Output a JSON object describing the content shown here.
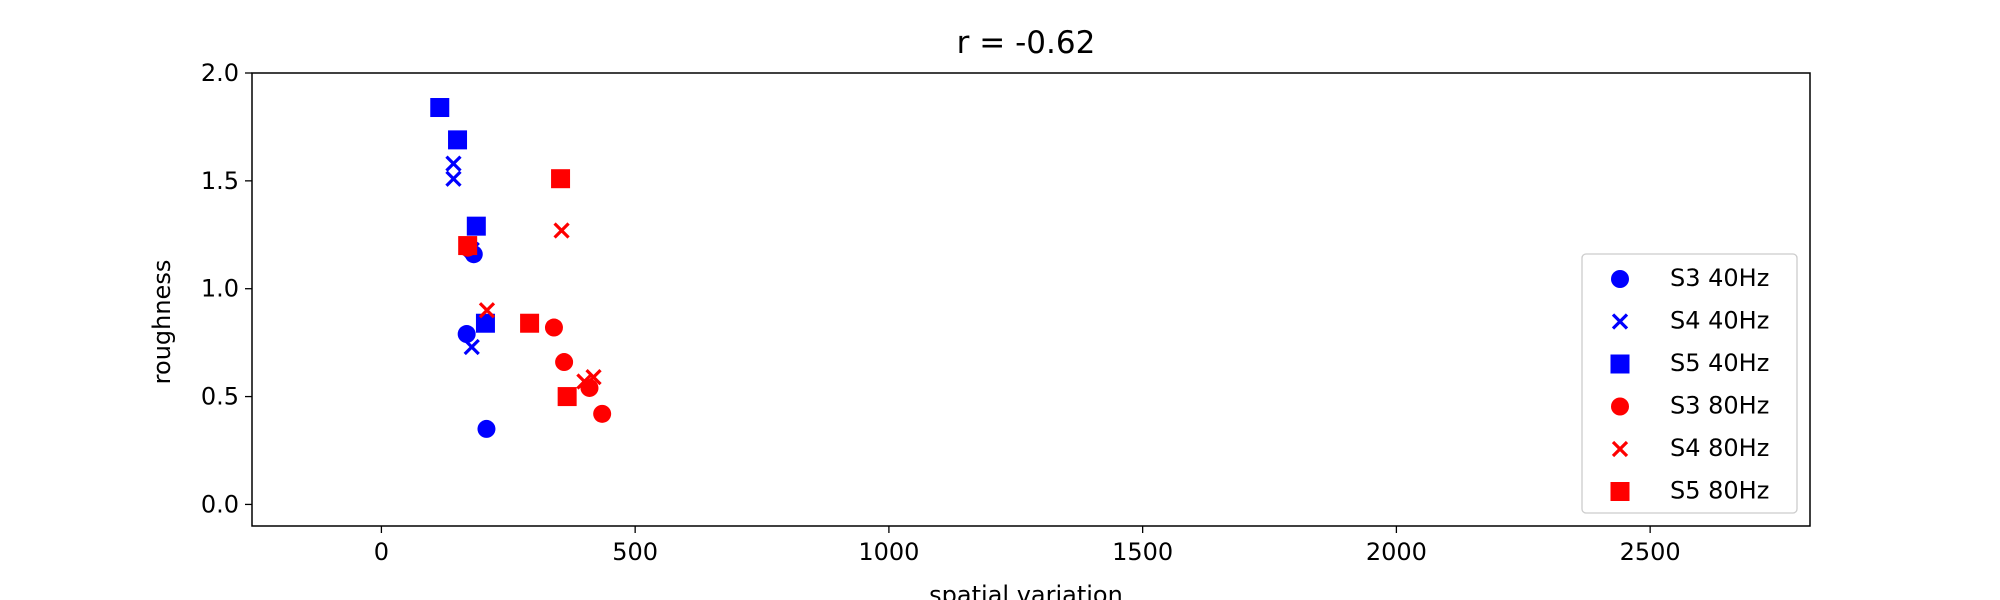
{
  "chart_data": {
    "type": "scatter",
    "title": "r = -0.62",
    "xlabel": "spatial variation",
    "ylabel": "roughness",
    "xlim": [
      -255,
      2815
    ],
    "ylim": [
      -0.1,
      2.0
    ],
    "xticks": [
      0,
      500,
      1000,
      1500,
      2000,
      2500
    ],
    "yticks": [
      0.0,
      0.5,
      1.0,
      1.5,
      2.0
    ],
    "xtick_labels": [
      "0",
      "500",
      "1000",
      "1500",
      "2000",
      "2500"
    ],
    "ytick_labels": [
      "0.0",
      "0.5",
      "1.0",
      "1.5",
      "2.0"
    ],
    "grid": false,
    "legend_position": "center-right",
    "series": [
      {
        "name": "S3 40Hz",
        "marker": "circle",
        "color": "#0000ff",
        "points": [
          [
            170,
            1.19
          ],
          [
            182,
            1.16
          ],
          [
            168,
            0.79
          ],
          [
            207,
            0.35
          ]
        ]
      },
      {
        "name": "S4 40Hz",
        "marker": "x",
        "color": "#0000ff",
        "points": [
          [
            142,
            1.58
          ],
          [
            142,
            1.51
          ],
          [
            178,
            1.18
          ],
          [
            178,
            0.73
          ]
        ]
      },
      {
        "name": "S5 40Hz",
        "marker": "square",
        "color": "#0000ff",
        "points": [
          [
            115,
            1.84
          ],
          [
            150,
            1.69
          ],
          [
            187,
            1.29
          ],
          [
            205,
            0.84
          ]
        ]
      },
      {
        "name": "S3 80Hz",
        "marker": "circle",
        "color": "#ff0000",
        "points": [
          [
            170,
            1.19
          ],
          [
            340,
            0.82
          ],
          [
            360,
            0.66
          ],
          [
            410,
            0.54
          ],
          [
            435,
            0.42
          ]
        ]
      },
      {
        "name": "S4 80Hz",
        "marker": "x",
        "color": "#ff0000",
        "points": [
          [
            355,
            1.27
          ],
          [
            208,
            0.9
          ],
          [
            400,
            0.57
          ],
          [
            418,
            0.59
          ]
        ]
      },
      {
        "name": "S5 80Hz",
        "marker": "square",
        "color": "#ff0000",
        "points": [
          [
            353,
            1.51
          ],
          [
            170,
            1.2
          ],
          [
            292,
            0.84
          ],
          [
            366,
            0.5
          ]
        ]
      }
    ]
  }
}
